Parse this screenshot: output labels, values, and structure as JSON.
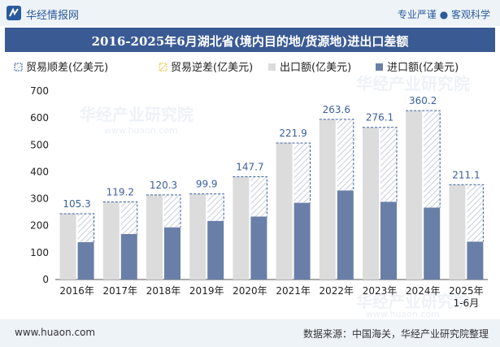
{
  "header": {
    "brand": "华经情报网",
    "slogan": "专业严谨 ● 客观科学"
  },
  "chart_data": {
    "type": "bar",
    "title": "2016-2025年6月湖北省(境内目的地/货源地)进出口差额",
    "categories": [
      "2016年",
      "2017年",
      "2018年",
      "2019年",
      "2020年",
      "2021年",
      "2022年",
      "2023年",
      "2024年",
      "2025年\n1-6月"
    ],
    "series": [
      {
        "name": "贸易顺差(亿美元)",
        "values": [
          105.3,
          119.2,
          120.3,
          99.9,
          147.7,
          221.9,
          263.6,
          276.1,
          360.2,
          211.1
        ]
      },
      {
        "name": "贸易逆差(亿美元)",
        "values": [
          0,
          0,
          0,
          0,
          0,
          0,
          0,
          0,
          0,
          0
        ]
      },
      {
        "name": "出口额(亿美元)",
        "values": [
          245,
          288,
          315,
          318,
          381,
          508,
          595,
          565,
          627,
          352
        ]
      },
      {
        "name": "进口额(亿美元)",
        "values": [
          139,
          169,
          194,
          218,
          234,
          285,
          331,
          289,
          267,
          141
        ]
      }
    ],
    "ylim": [
      0,
      700
    ],
    "yticks": [
      0,
      100,
      200,
      300,
      400,
      500,
      600,
      700
    ],
    "legend_position": "top-left",
    "colors": {
      "surplus": "#3a5f9e",
      "deficit": "#e8c948",
      "export": "#dcdcdc",
      "import": "#6a7fa8"
    }
  },
  "watermark": {
    "text": "华经产业研究院",
    "url": "www.huaon.com"
  },
  "footer": {
    "site": "www.huaon.com",
    "source": "数据来源：中国海关，华经产业研究院整理"
  }
}
